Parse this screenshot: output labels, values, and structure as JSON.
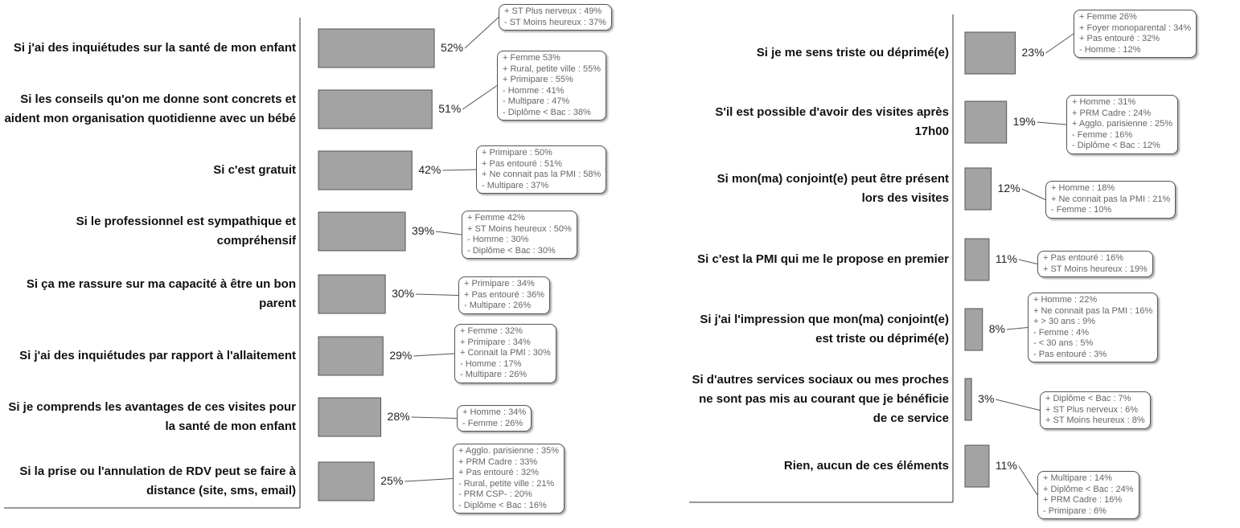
{
  "chart_data": [
    {
      "type": "barh",
      "color": "#a3a3a3",
      "categories": [
        "Si j'ai des inquiétudes sur la santé de mon enfant",
        "Si les conseils qu'on me donne sont concrets et aident mon organisation quotidienne avec un bébé",
        "Si c'est gratuit",
        "Si le professionnel est sympathique et compréhensif",
        "Si ça me rassure sur ma capacité à être un bon parent",
        "Si j'ai des inquiétudes par rapport à l'allaitement",
        "Si je comprends les avantages de ces visites pour la santé de mon enfant",
        "Si la prise ou l'annulation de RDV peut se faire à distance (site, sms, email)"
      ],
      "values": [
        52,
        51,
        42,
        39,
        30,
        29,
        28,
        25
      ],
      "value_labels": [
        "52%",
        "51%",
        "42%",
        "39%",
        "30%",
        "29%",
        "28%",
        "25%"
      ],
      "annotations": [
        [
          "+ ST Plus nerveux : 49%",
          "- ST Moins heureux : 37%"
        ],
        [
          "+ Femme 53%",
          "+ Rural, petite ville : 55%",
          "+ Primipare : 55%",
          "- Homme : 41%",
          "- Multipare : 47%",
          "- Diplôme < Bac : 38%"
        ],
        [
          "+ Primipare : 50%",
          "+ Pas entouré : 51%",
          "+ Ne connait pas la PMI : 58%",
          "- Multipare : 37%"
        ],
        [
          "+ Femme 42%",
          "+ ST Moins heureux : 50%",
          "- Homme : 30%",
          "- Diplôme < Bac : 30%"
        ],
        [
          "+ Primipare : 34%",
          "+ Pas entouré : 36%",
          "- Multipare : 26%"
        ],
        [
          "+ Femme : 32%",
          "+ Primipare : 34%",
          "+ Connait la PMI : 30%",
          "- Homme : 17%",
          "- Multipare : 26%"
        ],
        [
          "+ Homme : 34%",
          "- Femme : 26%"
        ],
        [
          "+ Agglo. parisienne : 35%",
          "+ PRM Cadre : 33%",
          "+ Pas entouré : 32%",
          "- Rural, petite ville : 21%",
          "- PRM CSP- : 20%",
          "- Diplôme < Bac : 16%"
        ]
      ]
    },
    {
      "type": "barh",
      "color": "#a3a3a3",
      "categories": [
        "Si je me sens triste ou déprimé(e)",
        "S'il est possible d'avoir des visites après 17h00",
        "Si mon(ma) conjoint(e) peut être présent lors des visites",
        "Si c'est la PMI qui me le propose en premier",
        "Si j'ai l'impression que mon(ma) conjoint(e) est triste ou déprimé(e)",
        "Si d'autres services sociaux ou mes proches ne sont pas mis au courant que je bénéficie de ce service",
        "Rien, aucun de ces éléments"
      ],
      "values": [
        23,
        19,
        12,
        11,
        8,
        3,
        11
      ],
      "value_labels": [
        "23%",
        "19%",
        "12%",
        "11%",
        "8%",
        "3%",
        "11%"
      ],
      "annotations": [
        [
          "+ Femme 26%",
          "+ Foyer monoparental : 34%",
          "+ Pas entouré : 32%",
          "- Homme : 12%"
        ],
        [
          "+ Homme : 31%",
          "+ PRM Cadre : 24%",
          "+ Agglo. parisienne : 25%",
          "- Femme : 16%",
          "- Diplôme < Bac : 12%"
        ],
        [
          "+ Homme : 18%",
          "+ Ne connait pas la PMI : 21%",
          "- Femme : 10%"
        ],
        [
          "+ Pas entouré : 16%",
          "+ ST Moins heureux : 19%"
        ],
        [
          "+ Homme : 22%",
          "+ Ne connait pas la PMI : 16%",
          "+ > 30 ans : 9%",
          "- Femme : 4%",
          "- < 30 ans : 5%",
          "- Pas entouré : 3%"
        ],
        [
          "+ Diplôme < Bac : 7%",
          "+ ST Plus nerveux : 6%",
          "+ ST Moins heureux : 8%"
        ],
        [
          "+ Multipare : 14%",
          "+ Diplôme < Bac : 24%",
          "+ PRM Cadre : 16%",
          "- Primipare : 6%"
        ]
      ]
    }
  ]
}
